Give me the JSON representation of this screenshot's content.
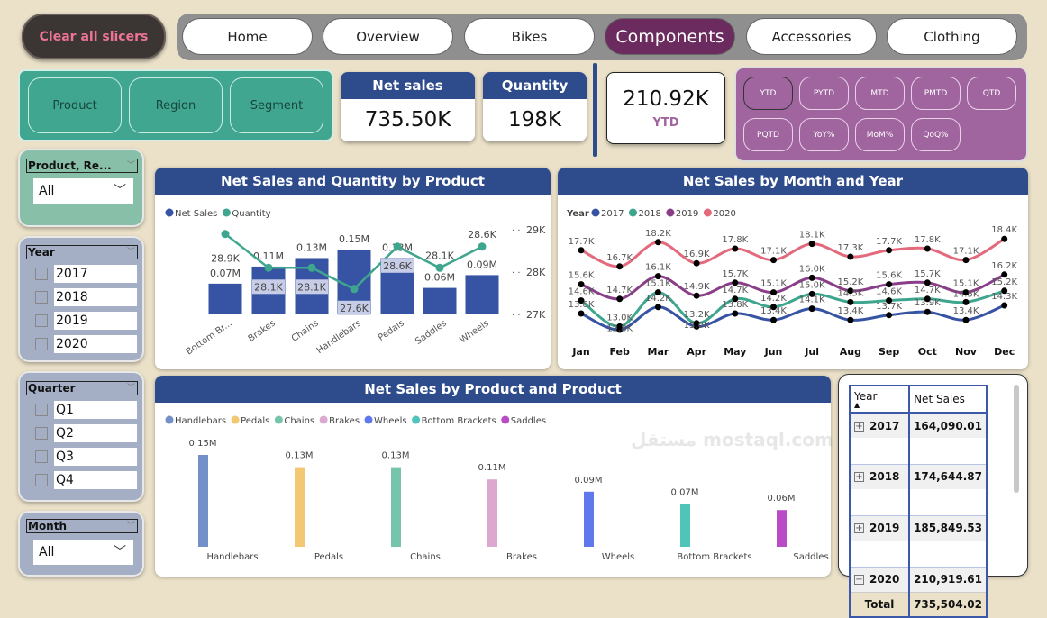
{
  "clear_slicers": "Clear all slicers",
  "nav": [
    "Home",
    "Overview",
    "Bikes",
    "Components",
    "Accessories",
    "Clothing"
  ],
  "nav_active": "Components",
  "filter_buttons": [
    "Product",
    "Region",
    "Segment"
  ],
  "kpi": {
    "net_sales": {
      "label": "Net sales",
      "value": "735.50K"
    },
    "quantity": {
      "label": "Quantity",
      "value": "198K"
    },
    "ytd": {
      "value": "210.92K",
      "label": "YTD"
    }
  },
  "time_buttons": [
    "YTD",
    "PYTD",
    "MTD",
    "PMTD",
    "QTD",
    "PQTD",
    "YoY%",
    "MoM%",
    "QoQ%"
  ],
  "time_selected": "YTD",
  "slicers": {
    "product": {
      "title": "Product, Re...",
      "value": "All"
    },
    "year": {
      "title": "Year",
      "options": [
        "2017",
        "2018",
        "2019",
        "2020"
      ]
    },
    "quarter": {
      "title": "Quarter",
      "options": [
        "Q1",
        "Q2",
        "Q3",
        "Q4"
      ]
    },
    "month": {
      "title": "Month",
      "value": "All"
    }
  },
  "chart_data": [
    {
      "type": "bar",
      "title": "Net Sales and Quantity by Product",
      "categories": [
        "Bottom Br...",
        "Brakes",
        "Chains",
        "Handlebars",
        "Pedals",
        "Saddles",
        "Wheels"
      ],
      "series": [
        {
          "name": "Net Sales",
          "type": "bar",
          "color": "#3653a4",
          "values": [
            0.07,
            0.11,
            0.13,
            0.15,
            0.13,
            0.06,
            0.09
          ],
          "labels": [
            "0.07M",
            "0.11M",
            "0.13M",
            "0.15M",
            "0.13M",
            "0.06M",
            "0.09M"
          ]
        },
        {
          "name": "Quantity",
          "type": "line",
          "color": "#3ea68e",
          "values": [
            28.9,
            28.1,
            28.1,
            27.6,
            28.6,
            28.1,
            28.6
          ],
          "labels": [
            "28.9K",
            "28.1K",
            "28.1K",
            "27.6K",
            "28.6K",
            "28.1K",
            "28.6K"
          ]
        }
      ],
      "y2_ticks": [
        "29K",
        "28K",
        "27K"
      ],
      "y2lim": [
        27,
        29
      ],
      "legend": "top-left"
    },
    {
      "type": "line",
      "title": "Net Sales by Month and Year",
      "legend_title": "Year",
      "categories": [
        "Jan",
        "Feb",
        "Mar",
        "Apr",
        "May",
        "Jun",
        "Jul",
        "Aug",
        "Sep",
        "Oct",
        "Nov",
        "Dec"
      ],
      "series": [
        {
          "name": "2017",
          "color": "#3653a4",
          "values": [
            13.8,
            12.8,
            14.2,
            13.0,
            13.8,
            13.4,
            14.1,
            13.4,
            13.7,
            13.9,
            13.4,
            14.3
          ]
        },
        {
          "name": "2018",
          "color": "#3ea68e",
          "values": [
            14.6,
            13.0,
            15.1,
            13.2,
            14.7,
            14.2,
            15.0,
            14.5,
            14.6,
            14.7,
            14.5,
            15.2
          ]
        },
        {
          "name": "2019",
          "color": "#8a3e88",
          "values": [
            15.6,
            14.7,
            16.1,
            14.9,
            15.7,
            15.1,
            16.0,
            15.2,
            15.6,
            15.7,
            15.1,
            16.2
          ]
        },
        {
          "name": "2020",
          "color": "#e26a7c",
          "values": [
            17.7,
            16.7,
            18.2,
            16.9,
            17.8,
            17.1,
            18.1,
            17.3,
            17.7,
            17.8,
            17.1,
            18.4
          ]
        }
      ],
      "unit": "K",
      "legend": "top-left"
    },
    {
      "type": "bar",
      "title": "Net Sales by Product and Product",
      "categories": [
        "Handlebars",
        "Pedals",
        "Chains",
        "Brakes",
        "Wheels",
        "Bottom Brackets",
        "Saddles"
      ],
      "values": [
        0.15,
        0.13,
        0.13,
        0.11,
        0.09,
        0.07,
        0.06
      ],
      "labels": [
        "0.15M",
        "0.13M",
        "0.13M",
        "0.11M",
        "0.09M",
        "0.07M",
        "0.06M"
      ],
      "colors": [
        "#7390c9",
        "#f2c872",
        "#76c4ab",
        "#dca8cf",
        "#5f78ec",
        "#4fc4b9",
        "#b94bc7"
      ],
      "legend": "top-left"
    }
  ],
  "matrix": {
    "headers": [
      "Year",
      "Net Sales"
    ],
    "rows": [
      {
        "year": "2017",
        "value": "164,090.01",
        "expanded": false
      },
      {
        "year": "2018",
        "value": "174,644.87",
        "expanded": false
      },
      {
        "year": "2019",
        "value": "185,849.53",
        "expanded": false
      },
      {
        "year": "2020",
        "value": "210,919.61",
        "expanded": true
      }
    ],
    "total_label": "Total",
    "total": "735,504.02"
  },
  "watermark": "مستقل mostaql.com"
}
